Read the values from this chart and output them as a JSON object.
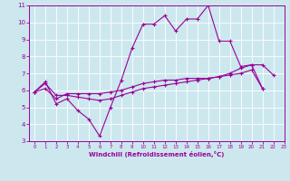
{
  "xlabel": "Windchill (Refroidissement éolien,°C)",
  "background_color": "#cce8ee",
  "line_color": "#990099",
  "xlim": [
    -0.5,
    23
  ],
  "ylim": [
    3,
    11
  ],
  "xticks": [
    0,
    1,
    2,
    3,
    4,
    5,
    6,
    7,
    8,
    9,
    10,
    11,
    12,
    13,
    14,
    15,
    16,
    17,
    18,
    19,
    20,
    21,
    22,
    23
  ],
  "yticks": [
    3,
    4,
    5,
    6,
    7,
    8,
    9,
    10,
    11
  ],
  "grid_color": "#ffffff",
  "series1_x": [
    0,
    1,
    2,
    3,
    4,
    5,
    6,
    7,
    8,
    9,
    10,
    11,
    12,
    13,
    14,
    15,
    16,
    17,
    18,
    19,
    20,
    21
  ],
  "series1_y": [
    5.9,
    6.5,
    5.2,
    5.5,
    4.8,
    4.3,
    3.3,
    5.0,
    6.6,
    8.5,
    9.9,
    9.9,
    10.4,
    9.5,
    10.2,
    10.2,
    11.0,
    8.9,
    8.9,
    7.4,
    7.5,
    6.1
  ],
  "series2_x": [
    0,
    1,
    2,
    3,
    4,
    5,
    6,
    7,
    8,
    9,
    10,
    11,
    12,
    13,
    14,
    15,
    16,
    17,
    18,
    19,
    20,
    21,
    22
  ],
  "series2_y": [
    5.9,
    6.4,
    5.7,
    5.7,
    5.6,
    5.5,
    5.4,
    5.5,
    5.7,
    5.9,
    6.1,
    6.2,
    6.3,
    6.4,
    6.5,
    6.6,
    6.7,
    6.8,
    7.0,
    7.3,
    7.5,
    7.5,
    6.9
  ],
  "series3_x": [
    0,
    1,
    2,
    3,
    4,
    5,
    6,
    7,
    8,
    9,
    10,
    11,
    12,
    13,
    14,
    15,
    16,
    17,
    18,
    19,
    20,
    21
  ],
  "series3_y": [
    5.9,
    6.1,
    5.5,
    5.8,
    5.8,
    5.8,
    5.8,
    5.9,
    6.0,
    6.2,
    6.4,
    6.5,
    6.6,
    6.6,
    6.7,
    6.7,
    6.7,
    6.8,
    6.9,
    7.0,
    7.2,
    6.1
  ]
}
